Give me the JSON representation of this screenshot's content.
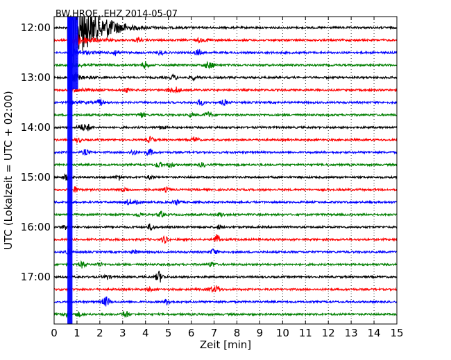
{
  "chart_data": {
    "type": "line",
    "title": "BW.HROE..EHZ 2014-05-07",
    "xlabel": "Zeit  [min]",
    "ylabel": "UTC (Lokalzeit = UTC + 02:00)",
    "xlim": [
      0,
      15
    ],
    "x_ticks": [
      "0",
      "1",
      "2",
      "3",
      "4",
      "5",
      "6",
      "7",
      "8",
      "9",
      "10",
      "11",
      "12",
      "13",
      "14",
      "15"
    ],
    "y_tick_labels": [
      "12:00",
      "13:00",
      "14:00",
      "15:00",
      "16:00",
      "17:00"
    ],
    "grid": "vertical-dotted",
    "trace_colors": [
      "#000000",
      "#ff0000",
      "#0000ff",
      "#008000"
    ],
    "traces_per_hour": 4,
    "trace_interval_minutes": 15,
    "first_trace": "12:00",
    "last_trace": "17:45",
    "event": {
      "onset_min": 0.6,
      "traces_affected": [
        "12:00",
        "12:15",
        "12:30",
        "12:45",
        "13:00",
        "13:15",
        "13:30"
      ]
    }
  }
}
